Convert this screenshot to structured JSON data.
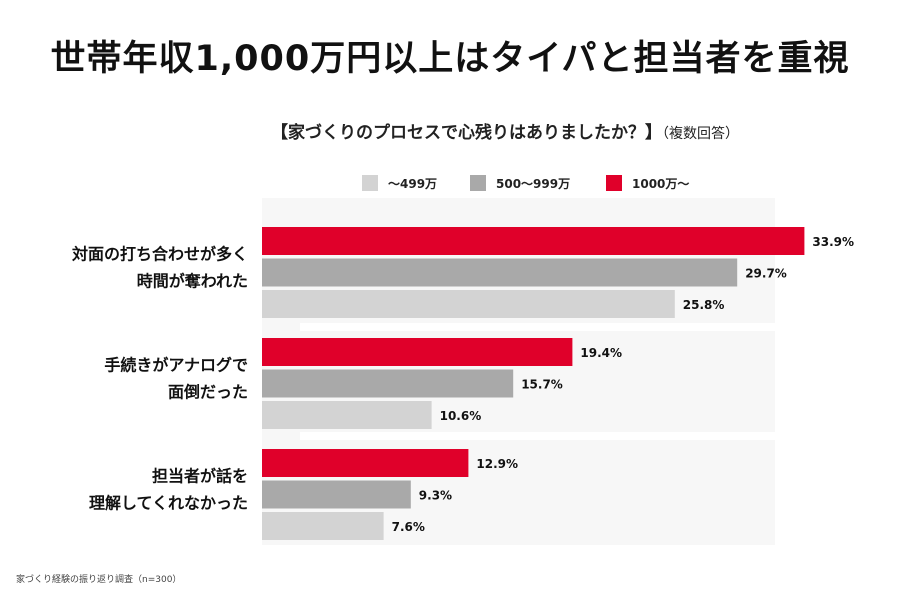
{
  "header": {
    "title": "世帯年収1,000万円以上はタイパと担当者を重視"
  },
  "chart_data": {
    "type": "bar",
    "orientation": "horizontal",
    "title": "【家づくりのプロセスで心残りはありましたか？】",
    "subtitle_note": "（複数回答）",
    "categories": [
      [
        "対面の打ち合わせが多く",
        "時間が奪われた"
      ],
      [
        "手続きがアナログで",
        "面倒だった"
      ],
      [
        "担当者が話を",
        "理解してくれなかった"
      ]
    ],
    "series": [
      {
        "name": "1000万〜",
        "color": "#e0002a",
        "values": [
          33.9,
          19.4,
          12.9
        ]
      },
      {
        "name": "500〜999万",
        "color": "#a9a9a9",
        "values": [
          29.7,
          15.7,
          9.3
        ]
      },
      {
        "name": "〜499万",
        "color": "#d3d3d3",
        "values": [
          25.8,
          10.6,
          7.6
        ]
      }
    ],
    "legend_order": [
      "〜499万",
      "500〜999万",
      "1000万〜"
    ],
    "legend_position": "top",
    "value_suffix": "%",
    "xlim": [
      0,
      35
    ],
    "xlabel": "",
    "ylabel": ""
  },
  "footnote": "家づくり経験の振り返り調査（n=300）"
}
